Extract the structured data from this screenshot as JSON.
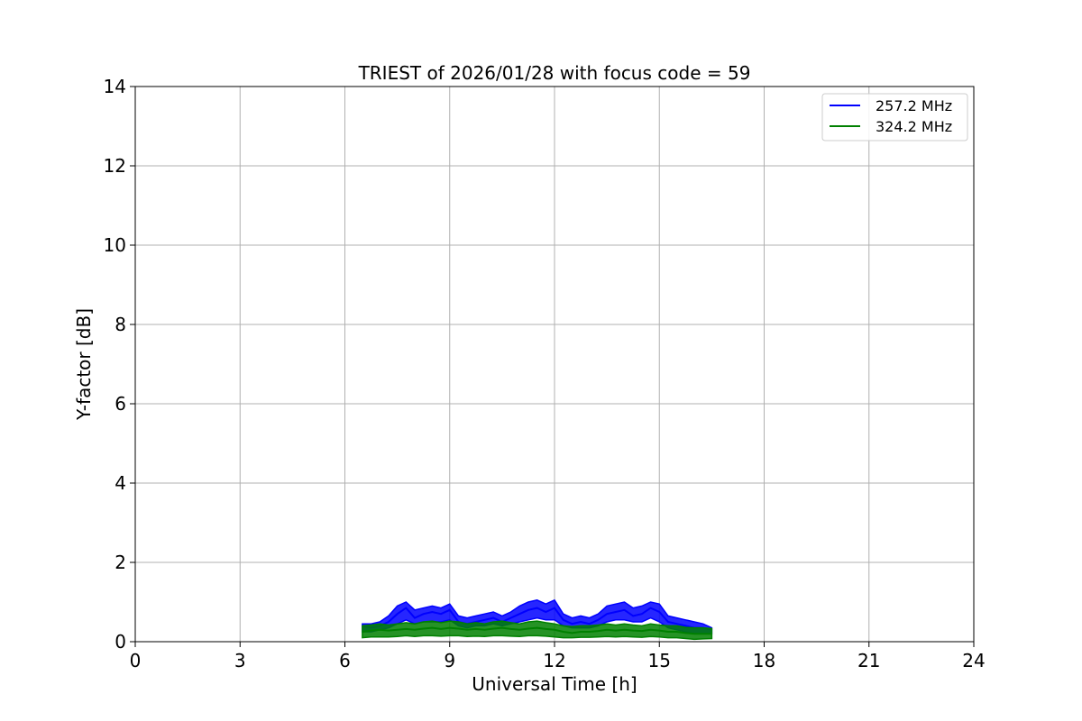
{
  "chart_data": {
    "type": "line",
    "title": "TRIEST of 2026/01/28 with focus code = 59",
    "xlabel": "Universal Time [h]",
    "ylabel": "Y-factor [dB]",
    "xlim": [
      0,
      24
    ],
    "ylim": [
      0,
      14
    ],
    "xticks": [
      "0",
      "3",
      "6",
      "9",
      "12",
      "15",
      "18",
      "21",
      "24"
    ],
    "yticks": [
      "0",
      "2",
      "4",
      "6",
      "8",
      "10",
      "12",
      "14"
    ],
    "grid": true,
    "legend_position": "top-right",
    "series": [
      {
        "name": "257.2 MHz",
        "color": "#0000ff",
        "x": [
          6.5,
          6.75,
          7.0,
          7.25,
          7.5,
          7.75,
          8.0,
          8.25,
          8.5,
          8.75,
          9.0,
          9.25,
          9.5,
          9.75,
          10.0,
          10.25,
          10.5,
          10.75,
          11.0,
          11.25,
          11.5,
          11.75,
          12.0,
          12.25,
          12.5,
          12.75,
          13.0,
          13.25,
          13.5,
          13.75,
          14.0,
          14.25,
          14.5,
          14.75,
          15.0,
          15.25,
          15.5,
          15.75,
          16.0,
          16.25,
          16.5
        ],
        "y": [
          0.4,
          0.35,
          0.4,
          0.5,
          0.7,
          0.85,
          0.6,
          0.7,
          0.75,
          0.7,
          0.8,
          0.5,
          0.45,
          0.5,
          0.55,
          0.6,
          0.5,
          0.6,
          0.7,
          0.8,
          0.85,
          0.75,
          0.85,
          0.55,
          0.45,
          0.5,
          0.45,
          0.55,
          0.7,
          0.75,
          0.8,
          0.65,
          0.7,
          0.85,
          0.75,
          0.5,
          0.45,
          0.4,
          0.35,
          0.35,
          0.3
        ],
        "lo": [
          0.25,
          0.25,
          0.3,
          0.35,
          0.45,
          0.55,
          0.45,
          0.5,
          0.5,
          0.5,
          0.55,
          0.4,
          0.35,
          0.4,
          0.4,
          0.45,
          0.4,
          0.45,
          0.5,
          0.55,
          0.6,
          0.55,
          0.55,
          0.4,
          0.35,
          0.35,
          0.35,
          0.4,
          0.5,
          0.55,
          0.55,
          0.5,
          0.5,
          0.6,
          0.5,
          0.35,
          0.3,
          0.25,
          0.2,
          0.2,
          0.2
        ],
        "hi": [
          0.45,
          0.45,
          0.5,
          0.65,
          0.9,
          1.0,
          0.8,
          0.85,
          0.9,
          0.85,
          0.95,
          0.65,
          0.6,
          0.65,
          0.7,
          0.75,
          0.65,
          0.75,
          0.9,
          1.0,
          1.05,
          0.95,
          1.05,
          0.7,
          0.6,
          0.65,
          0.6,
          0.7,
          0.9,
          0.95,
          1.0,
          0.85,
          0.9,
          1.0,
          0.95,
          0.65,
          0.6,
          0.55,
          0.5,
          0.45,
          0.35
        ]
      },
      {
        "name": "324.2 MHz",
        "color": "#008000",
        "x": [
          6.5,
          6.75,
          7.0,
          7.25,
          7.5,
          7.75,
          8.0,
          8.25,
          8.5,
          8.75,
          9.0,
          9.25,
          9.5,
          9.75,
          10.0,
          10.25,
          10.5,
          10.75,
          11.0,
          11.25,
          11.5,
          11.75,
          12.0,
          12.25,
          12.5,
          12.75,
          13.0,
          13.25,
          13.5,
          13.75,
          14.0,
          14.25,
          14.5,
          14.75,
          15.0,
          15.25,
          15.5,
          15.75,
          16.0,
          16.25,
          16.5
        ],
        "y": [
          0.25,
          0.28,
          0.3,
          0.28,
          0.3,
          0.32,
          0.3,
          0.33,
          0.35,
          0.32,
          0.35,
          0.33,
          0.3,
          0.32,
          0.3,
          0.33,
          0.35,
          0.32,
          0.3,
          0.33,
          0.35,
          0.32,
          0.3,
          0.25,
          0.22,
          0.25,
          0.25,
          0.27,
          0.3,
          0.28,
          0.3,
          0.28,
          0.27,
          0.3,
          0.28,
          0.25,
          0.25,
          0.22,
          0.2,
          0.2,
          0.2
        ],
        "lo": [
          0.1,
          0.12,
          0.12,
          0.12,
          0.13,
          0.15,
          0.13,
          0.15,
          0.15,
          0.14,
          0.15,
          0.15,
          0.13,
          0.14,
          0.13,
          0.15,
          0.15,
          0.14,
          0.13,
          0.15,
          0.15,
          0.14,
          0.12,
          0.1,
          0.1,
          0.11,
          0.11,
          0.12,
          0.13,
          0.12,
          0.13,
          0.12,
          0.11,
          0.13,
          0.12,
          0.1,
          0.1,
          0.08,
          0.06,
          0.07,
          0.08
        ],
        "hi": [
          0.4,
          0.42,
          0.45,
          0.42,
          0.45,
          0.48,
          0.45,
          0.5,
          0.52,
          0.48,
          0.52,
          0.5,
          0.45,
          0.48,
          0.45,
          0.5,
          0.52,
          0.48,
          0.45,
          0.5,
          0.52,
          0.48,
          0.45,
          0.4,
          0.38,
          0.4,
          0.4,
          0.42,
          0.45,
          0.42,
          0.45,
          0.42,
          0.4,
          0.45,
          0.42,
          0.4,
          0.4,
          0.36,
          0.35,
          0.35,
          0.33
        ]
      }
    ]
  }
}
